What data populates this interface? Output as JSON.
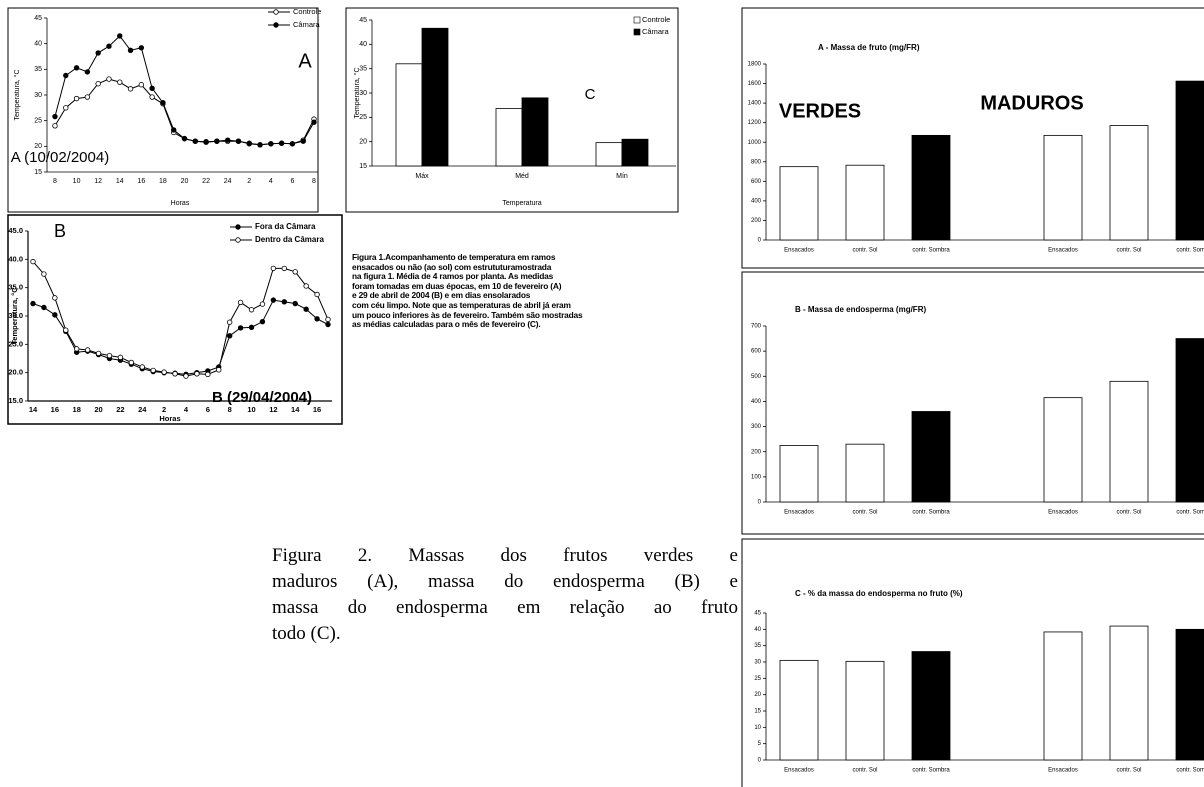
{
  "chart_data": [
    {
      "type": "line",
      "xlabel": "Horas",
      "ylabel": "Temperatura, °C",
      "categories": [
        8,
        null,
        10,
        null,
        12,
        null,
        14,
        null,
        16,
        null,
        18,
        null,
        20,
        null,
        22,
        null,
        24,
        null,
        2,
        null,
        4,
        null,
        6,
        null,
        8
      ],
      "series": [
        {
          "name": "Controle",
          "color": "#000000",
          "marker_fill": "#ffffff",
          "values": [
            24,
            27.5,
            29.3,
            29.6,
            32.2,
            33.1,
            32.5,
            31.2,
            32,
            29.6,
            28.3,
            22.7,
            21.5,
            21,
            20.9,
            21,
            21,
            21,
            20.5,
            20.3,
            20.5,
            20.6,
            20.5,
            21.2,
            25.3
          ]
        },
        {
          "name": "Câmara",
          "color": "#000000",
          "marker_fill": "#000000",
          "values": [
            25.8,
            33.8,
            35.3,
            34.5,
            38.2,
            39.5,
            41.5,
            38.7,
            39.2,
            31.3,
            28.5,
            23.2,
            21.5,
            21,
            20.8,
            21,
            21.2,
            21,
            20.6,
            20.3,
            20.5,
            20.6,
            20.5,
            21,
            24.7
          ]
        }
      ],
      "ylim": [
        15,
        45
      ],
      "yticks": [
        15,
        20,
        25,
        30,
        35,
        40,
        45
      ],
      "legend": "top-right",
      "annotations": [
        "A",
        "A (10/02/2004)"
      ]
    },
    {
      "type": "bar",
      "xlabel": "Temperatura",
      "ylabel": "Temperatura, °C",
      "categories": [
        "Máx",
        "Méd",
        "Mín"
      ],
      "series": [
        {
          "name": "Controle",
          "color": "#ffffff",
          "values": [
            36,
            26.8,
            19.8
          ]
        },
        {
          "name": "Câmara",
          "color": "#000000",
          "values": [
            43.3,
            29,
            20.5
          ]
        }
      ],
      "ylim": [
        15,
        45
      ],
      "yticks": [
        15,
        20,
        25,
        30,
        35,
        40,
        45
      ],
      "legend": "top-right",
      "annotations": [
        "C"
      ]
    },
    {
      "type": "line",
      "xlabel": "Horas",
      "ylabel": "Temperatura, °C",
      "categories": [
        14,
        null,
        16,
        null,
        18,
        null,
        20,
        null,
        22,
        null,
        24,
        null,
        2,
        null,
        4,
        null,
        6,
        null,
        8,
        null,
        10,
        null,
        12,
        null,
        14,
        null,
        16,
        null
      ],
      "series": [
        {
          "name": "Fora da Câmara",
          "color": "#000000",
          "marker_fill": "#000000",
          "values": [
            32.2,
            31.5,
            30.2,
            27.3,
            23.6,
            23.8,
            23.2,
            22.5,
            22.2,
            21.5,
            20.7,
            20.2,
            20,
            19.9,
            19.7,
            20,
            20.3,
            21,
            26.5,
            27.9,
            28,
            29,
            32.8,
            32.5,
            32.2,
            31.2,
            29.5,
            28.5
          ]
        },
        {
          "name": "Dentro da Câmara",
          "color": "#000000",
          "marker_fill": "#ffffff",
          "values": [
            39.6,
            37.4,
            33.2,
            27.5,
            24.2,
            24,
            23.4,
            23,
            22.7,
            21.8,
            21,
            20.4,
            20.1,
            19.8,
            19.4,
            19.8,
            19.7,
            20.5,
            28.9,
            32.4,
            31.1,
            32.1,
            38.4,
            38.4,
            37.8,
            35.3,
            33.8,
            29.4
          ]
        }
      ],
      "ylim": [
        15,
        45
      ],
      "yticks": [
        {
          "value": 15,
          "label": "15.0"
        },
        {
          "value": 20,
          "label": "20.0"
        },
        {
          "value": 25,
          "label": "25.0"
        },
        {
          "value": 30,
          "label": "30.0"
        },
        {
          "value": 35,
          "label": "35.0"
        },
        {
          "value": 40,
          "label": "40.0"
        },
        {
          "value": 45,
          "label": "45.0"
        }
      ],
      "legend": "top-right",
      "annotations": [
        "B",
        "B (29/04/2004)"
      ]
    },
    {
      "type": "bar",
      "title": "A - Massa de fruto (mg/FR)",
      "categories": [
        "Ensacados",
        "contr. Sol",
        "contr. Sombra",
        null,
        "Ensacados",
        "contr. Sol",
        "contr. Sombra"
      ],
      "values": [
        750,
        765,
        1070,
        null,
        1070,
        1170,
        1625
      ],
      "colors": [
        "#ffffff",
        "#ffffff",
        "#000000",
        null,
        "#ffffff",
        "#ffffff",
        "#000000"
      ],
      "ylim": [
        0,
        1800
      ],
      "yticks": [
        0,
        200,
        400,
        600,
        800,
        1000,
        1200,
        1400,
        1600,
        1800
      ],
      "annotations": [
        "VERDES",
        "MADUROS"
      ]
    },
    {
      "type": "bar",
      "title": "B - Massa de endosperma (mg/FR)",
      "categories": [
        "Ensacados",
        "contr. Sol",
        "contr. Sombra",
        null,
        "Ensacados",
        "contr. Sol",
        "contr. Sombra"
      ],
      "values": [
        225,
        230,
        360,
        null,
        415,
        480,
        650
      ],
      "colors": [
        "#ffffff",
        "#ffffff",
        "#000000",
        null,
        "#ffffff",
        "#ffffff",
        "#000000"
      ],
      "ylim": [
        0,
        700
      ],
      "yticks": [
        0,
        100,
        200,
        300,
        400,
        500,
        600,
        700
      ]
    },
    {
      "type": "bar",
      "title": "C - % da massa do endosperma no fruto (%)",
      "categories": [
        "Ensacados",
        "contr. Sol",
        "contr. Sombra",
        null,
        "Ensacados",
        "contr. Sol",
        "contr. Sombra"
      ],
      "values": [
        30.5,
        30.2,
        33.2,
        null,
        39.2,
        41,
        40
      ],
      "colors": [
        "#ffffff",
        "#ffffff",
        "#000000",
        null,
        "#ffffff",
        "#ffffff",
        "#000000"
      ],
      "ylim": [
        0,
        45
      ],
      "yticks": [
        0,
        5,
        10,
        15,
        20,
        25,
        30,
        35,
        40,
        45
      ]
    }
  ],
  "figure1_caption": [
    "Figura 1.Acompanhamento de temperatura em ramos",
    "ensacados ou não (ao sol) com estrututuramostrada",
    "na figura 1. Média de 4 ramos por planta. As medidas",
    "foram tomadas em duas épocas, em 10 de fevereiro (A)",
    "e 29 de abril de 2004 (B) e em dias ensolarados",
    "com céu limpo. Note que as temperaturas de abril já eram",
    "um pouco inferiores às de fevereiro. Também são mostradas",
    "as médias calculadas para o mês de fevereiro (C)."
  ],
  "figure2_caption": [
    "Figura 2. Massas dos frutos verdes e",
    "maduros (A), massa do endosperma (B) e",
    "massa do endosperma em relação ao fruto",
    "todo (C)."
  ]
}
